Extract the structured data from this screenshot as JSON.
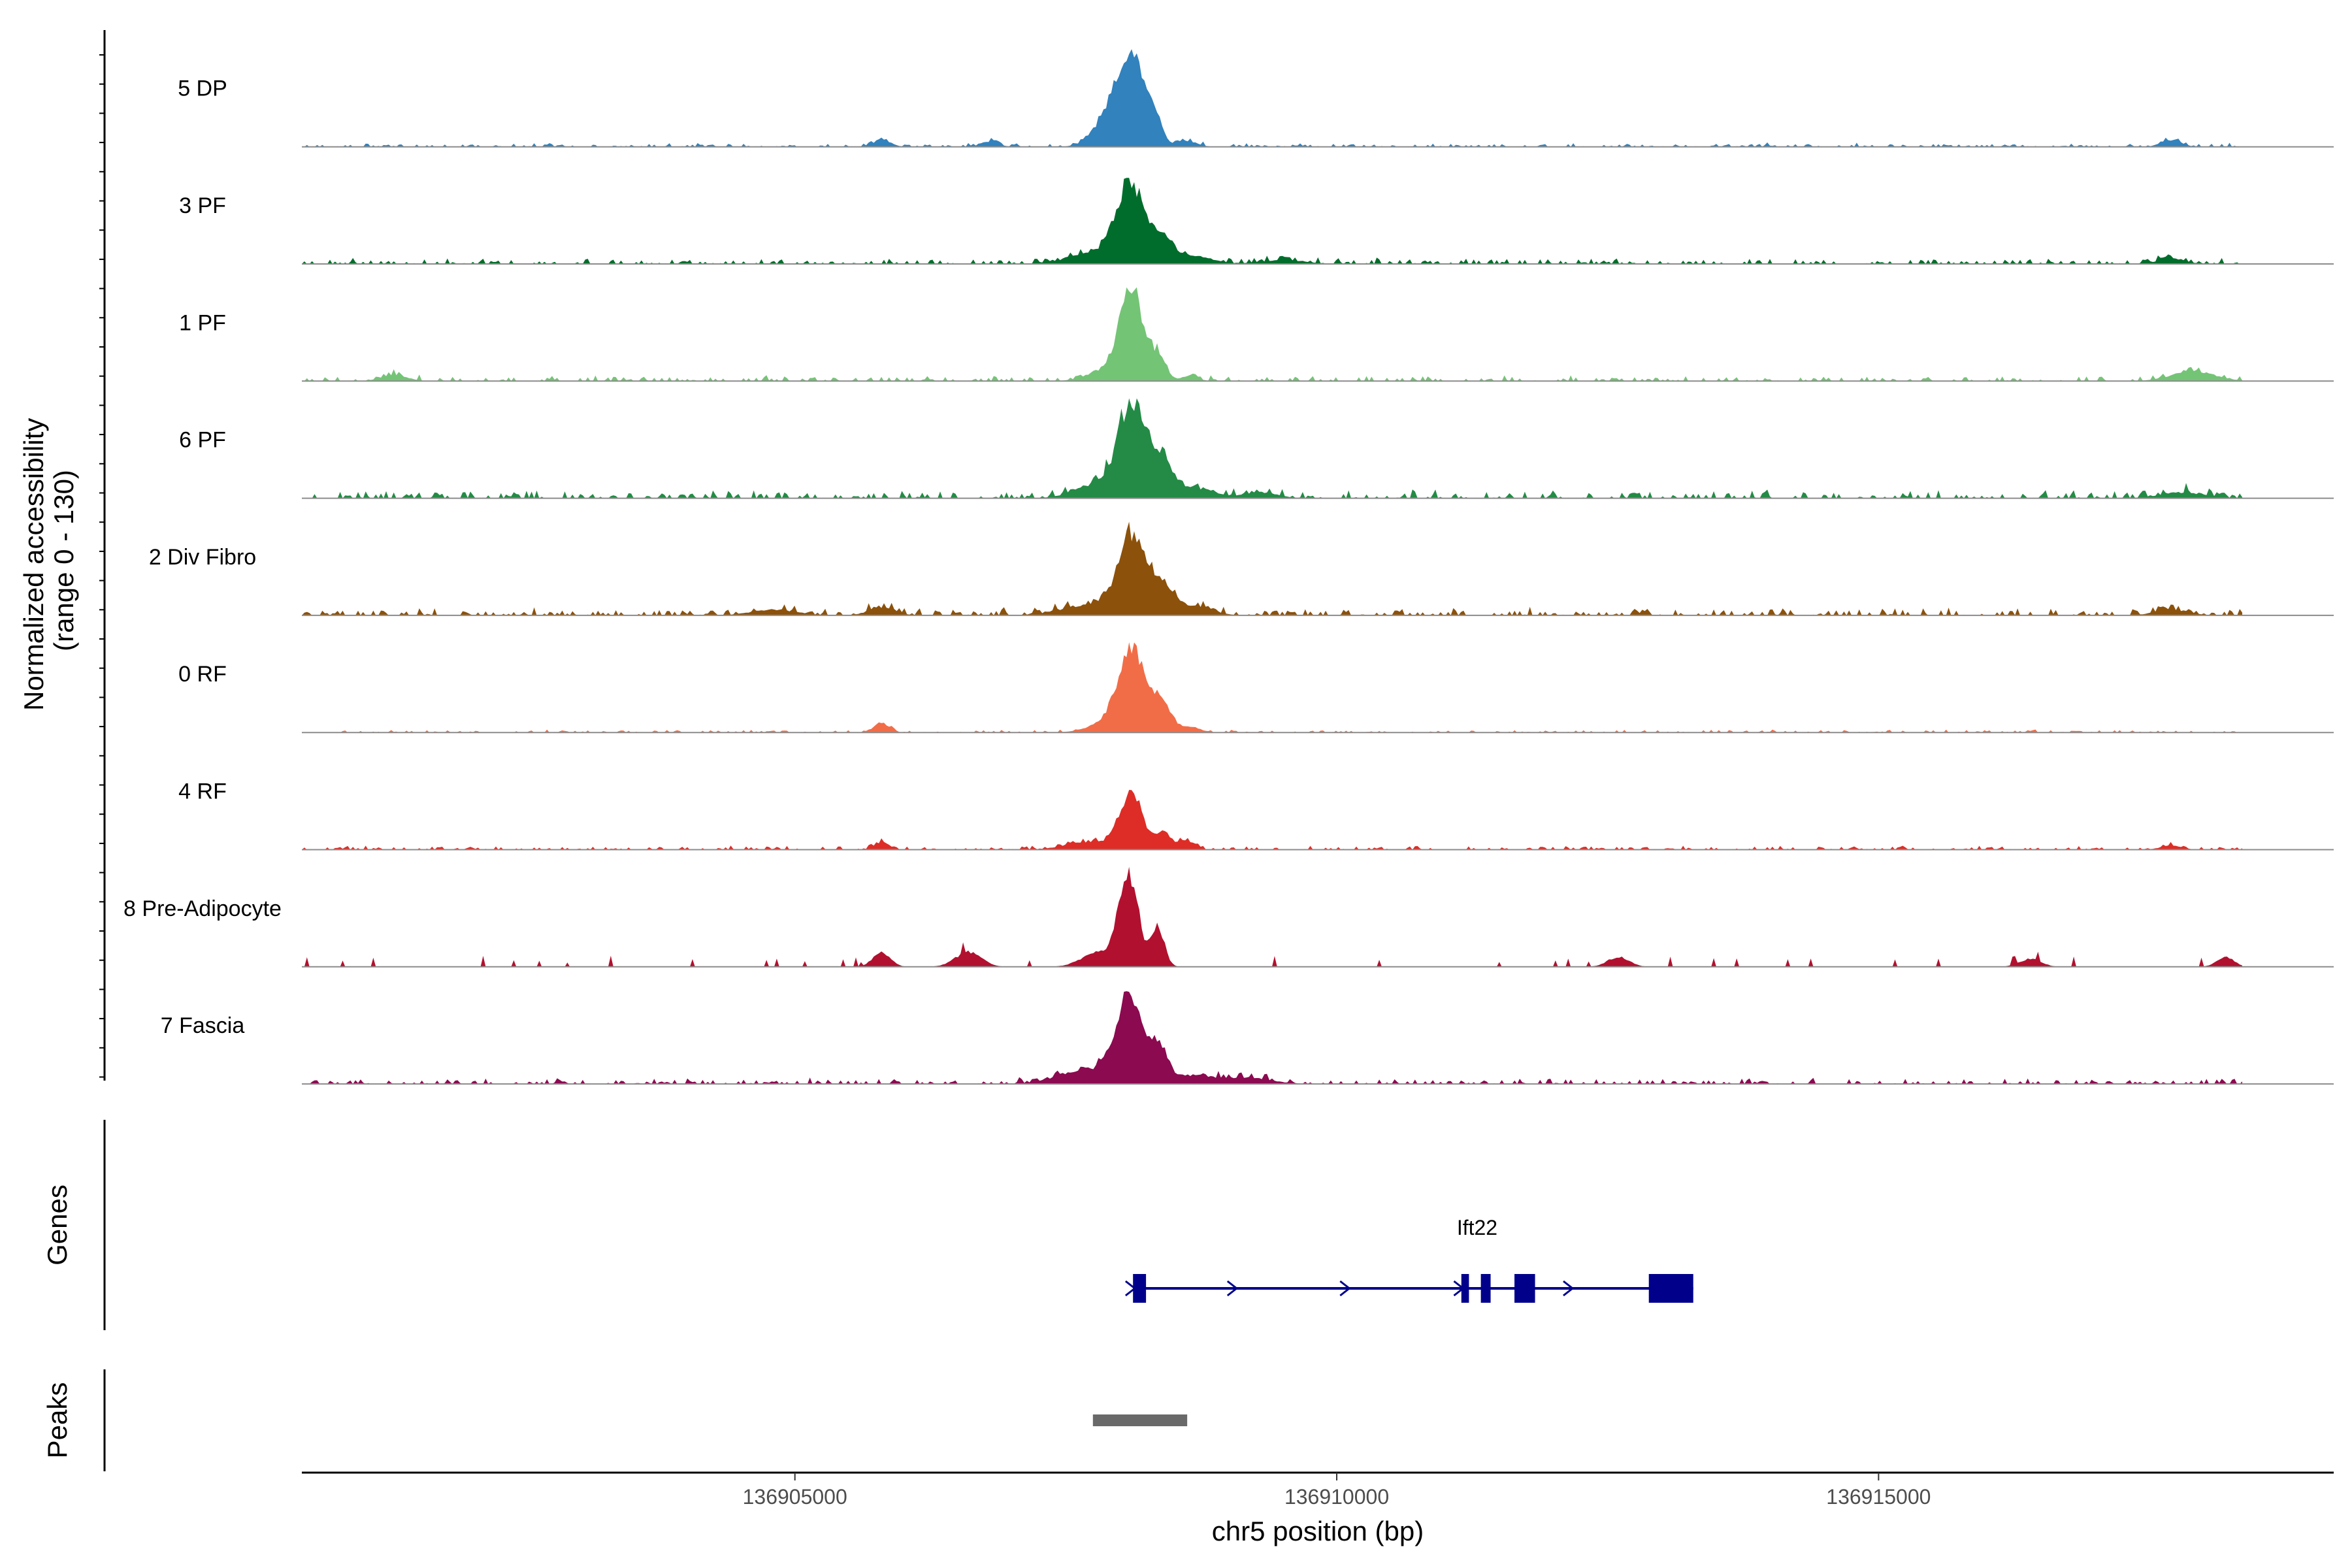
{
  "chart_data": {
    "type": "area",
    "title": "",
    "ylabel": "Normalized accessibility\n(range 0 - 130)",
    "ylabel_line1": "Normalized accessibility",
    "ylabel_line2": "(range 0 - 130)",
    "ylim": [
      0,
      130
    ],
    "xlabel": "chr5 position (bp)",
    "xlim": [
      136900450,
      136919200
    ],
    "x_ticks": [
      136905000,
      136910000,
      136915000
    ],
    "x_tick_labels": [
      "136905000",
      "136910000",
      "136915000"
    ],
    "tracks_panel_label": "Genes",
    "peaks_panel_label": "Peaks",
    "series": [
      {
        "name": "5 DP",
        "color": "#3182bd",
        "peaks": [
          [
            136908110,
            0.9,
            120
          ],
          [
            136908330,
            0.22,
            60
          ],
          [
            136907900,
            0.3,
            140
          ],
          [
            136908600,
            0.06,
            100
          ],
          [
            136905800,
            0.07,
            80
          ],
          [
            136917700,
            0.07,
            90
          ],
          [
            136906800,
            0.05,
            80
          ]
        ],
        "base_level": 0.02
      },
      {
        "name": "3 PF",
        "color": "#006d2c",
        "peaks": [
          [
            136908100,
            0.75,
            130
          ],
          [
            136908400,
            0.25,
            100
          ],
          [
            136907800,
            0.12,
            250
          ],
          [
            136908700,
            0.08,
            150
          ],
          [
            136917700,
            0.06,
            120
          ],
          [
            136909500,
            0.04,
            200
          ]
        ],
        "base_level": 0.03
      },
      {
        "name": "1 PF",
        "color": "#74c476",
        "peaks": [
          [
            136908110,
            0.88,
            110
          ],
          [
            136908360,
            0.22,
            70
          ],
          [
            136907900,
            0.12,
            180
          ],
          [
            136917900,
            0.1,
            200
          ],
          [
            136908650,
            0.06,
            70
          ],
          [
            136901300,
            0.06,
            120
          ]
        ],
        "base_level": 0.03
      },
      {
        "name": "6 PF",
        "color": "#238b45",
        "peaks": [
          [
            136908110,
            0.95,
            120
          ],
          [
            136908380,
            0.35,
            110
          ],
          [
            136907800,
            0.15,
            200
          ],
          [
            136909300,
            0.06,
            150
          ],
          [
            136917800,
            0.06,
            200
          ],
          [
            136908700,
            0.1,
            180
          ]
        ],
        "base_level": 0.045
      },
      {
        "name": "2 Div Fibro",
        "color": "#8c510a",
        "peaks": [
          [
            136908110,
            0.8,
            130
          ],
          [
            136908400,
            0.3,
            100
          ],
          [
            136907700,
            0.1,
            250
          ],
          [
            136905800,
            0.08,
            120
          ],
          [
            136908700,
            0.1,
            150
          ],
          [
            136917700,
            0.06,
            150
          ],
          [
            136904800,
            0.06,
            200
          ]
        ],
        "base_level": 0.04
      },
      {
        "name": "0 RF",
        "color": "#f16d48",
        "peaks": [
          [
            136908110,
            0.85,
            120
          ],
          [
            136908380,
            0.28,
            90
          ],
          [
            136905800,
            0.1,
            70
          ],
          [
            136907900,
            0.1,
            180
          ],
          [
            136908650,
            0.06,
            90
          ]
        ],
        "base_level": 0.015
      },
      {
        "name": "4 RF",
        "color": "#de2d26",
        "peaks": [
          [
            136908100,
            0.55,
            110
          ],
          [
            136908400,
            0.18,
            60
          ],
          [
            136908600,
            0.1,
            80
          ],
          [
            136905800,
            0.07,
            70
          ],
          [
            136907700,
            0.08,
            200
          ],
          [
            136917700,
            0.04,
            100
          ]
        ],
        "base_level": 0.02
      },
      {
        "name": "8 Pre-Adipocyte",
        "color": "#b2102f",
        "peaks": [
          [
            136908080,
            0.95,
            90
          ],
          [
            136908350,
            0.4,
            60
          ],
          [
            136907800,
            0.15,
            150
          ],
          [
            136906600,
            0.15,
            120
          ],
          [
            136905800,
            0.15,
            80
          ],
          [
            136912600,
            0.1,
            100
          ],
          [
            136918200,
            0.1,
            80
          ],
          [
            136916400,
            0.08,
            100
          ]
        ],
        "base_level": 0.0,
        "sparse": true
      },
      {
        "name": "7 Fascia",
        "color": "#8b0a50",
        "peaks": [
          [
            136908080,
            0.85,
            120
          ],
          [
            136908350,
            0.35,
            90
          ],
          [
            136907700,
            0.15,
            250
          ],
          [
            136908700,
            0.08,
            200
          ],
          [
            136909200,
            0.06,
            200
          ]
        ],
        "base_level": 0.03
      }
    ],
    "genes": [
      {
        "name": "Ift22",
        "strand": "+",
        "start": 136908120,
        "end": 136913290,
        "exons": [
          [
            136908120,
            136908240
          ],
          [
            136911150,
            136911220
          ],
          [
            136911330,
            136911420
          ],
          [
            136911640,
            136911830
          ],
          [
            136912880,
            136913290
          ]
        ],
        "arrows": [
          136908100,
          136909040,
          136910080,
          136911130,
          136912140
        ]
      }
    ],
    "peaks_regions": [
      [
        136907750,
        136908620
      ]
    ]
  }
}
